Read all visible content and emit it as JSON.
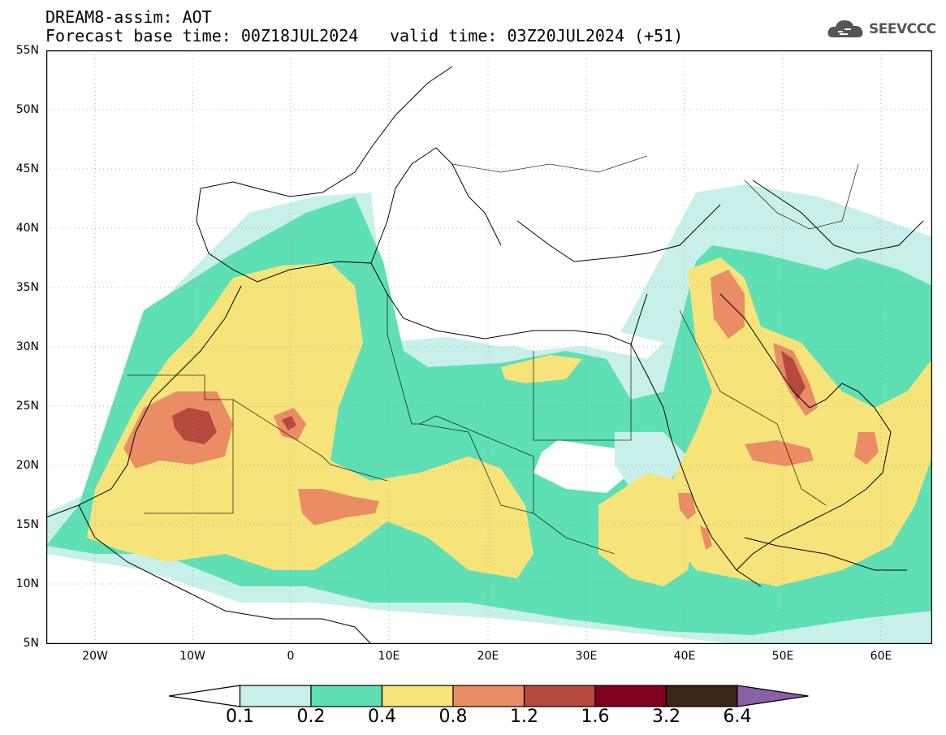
{
  "header": {
    "line1": "DREAM8-assim: AOT",
    "base_time": "Forecast base time: 00Z18JUL2024",
    "valid_time": "valid time: 03Z20JUL2024 (+51)"
  },
  "logo": {
    "text": "SEEVCCC",
    "icon": "cloud-icon"
  },
  "map": {
    "lat_labels": [
      "55N",
      "50N",
      "45N",
      "40N",
      "35N",
      "30N",
      "25N",
      "20N",
      "15N",
      "10N",
      "5N"
    ],
    "lon_labels": [
      "20W",
      "10W",
      "0",
      "10E",
      "20E",
      "30E",
      "40E",
      "50E",
      "60E"
    ],
    "grid": true
  },
  "colorbar": {
    "colors": [
      "#ffffff",
      "#c8f0ea",
      "#5fdfb4",
      "#f6e47a",
      "#ea8c64",
      "#b54a3c",
      "#800020",
      "#3a2614",
      "#8a60a8"
    ],
    "labels": [
      "0.1",
      "0.2",
      "0.4",
      "0.8",
      "1.2",
      "1.6",
      "3.2",
      "6.4"
    ]
  }
}
